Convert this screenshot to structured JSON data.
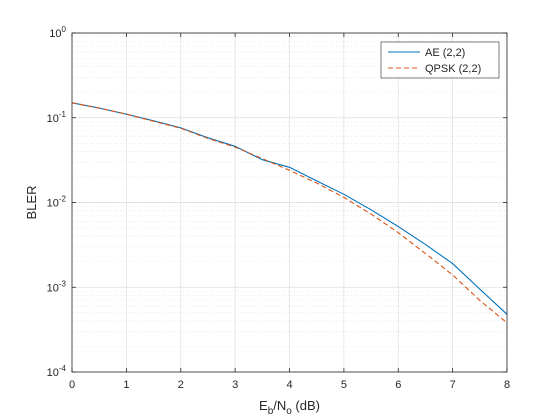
{
  "chart_data": {
    "type": "line",
    "title": "",
    "xlabel": {
      "main": "E",
      "sub1": "b",
      "mid": "/N",
      "sub2": "o",
      "tail": " (dB)"
    },
    "ylabel": "BLER",
    "xlim": [
      0,
      8
    ],
    "ylim": [
      0.0001,
      1
    ],
    "yscale": "log",
    "grid": true,
    "minor_grid": true,
    "legend_position": "top-right",
    "x_ticks": [
      "0",
      "1",
      "2",
      "3",
      "4",
      "5",
      "6",
      "7",
      "8"
    ],
    "y_ticks": [
      {
        "base": "10",
        "exp": "-4"
      },
      {
        "base": "10",
        "exp": "-3"
      },
      {
        "base": "10",
        "exp": "-2"
      },
      {
        "base": "10",
        "exp": "-1"
      },
      {
        "base": "10",
        "exp": "0"
      }
    ],
    "x": [
      0,
      0.5,
      1,
      1.5,
      2,
      2.5,
      3,
      3.5,
      4,
      4.5,
      5,
      5.5,
      6,
      6.5,
      7,
      7.5,
      8
    ],
    "series": [
      {
        "name": "AE (2,2)",
        "color": "#0072BD",
        "style": "solid",
        "values": [
          0.15,
          0.13,
          0.11,
          0.092,
          0.076,
          0.058,
          0.046,
          0.032,
          0.026,
          0.018,
          0.0125,
          0.0082,
          0.0052,
          0.0032,
          0.0019,
          0.00095,
          0.00048
        ]
      },
      {
        "name": "QPSK (2,2)",
        "color": "#D95319",
        "style": "dashed",
        "values": [
          0.15,
          0.13,
          0.11,
          0.091,
          0.075,
          0.057,
          0.045,
          0.033,
          0.024,
          0.017,
          0.0115,
          0.0073,
          0.0044,
          0.0025,
          0.0014,
          0.0007,
          0.00038
        ]
      }
    ]
  }
}
